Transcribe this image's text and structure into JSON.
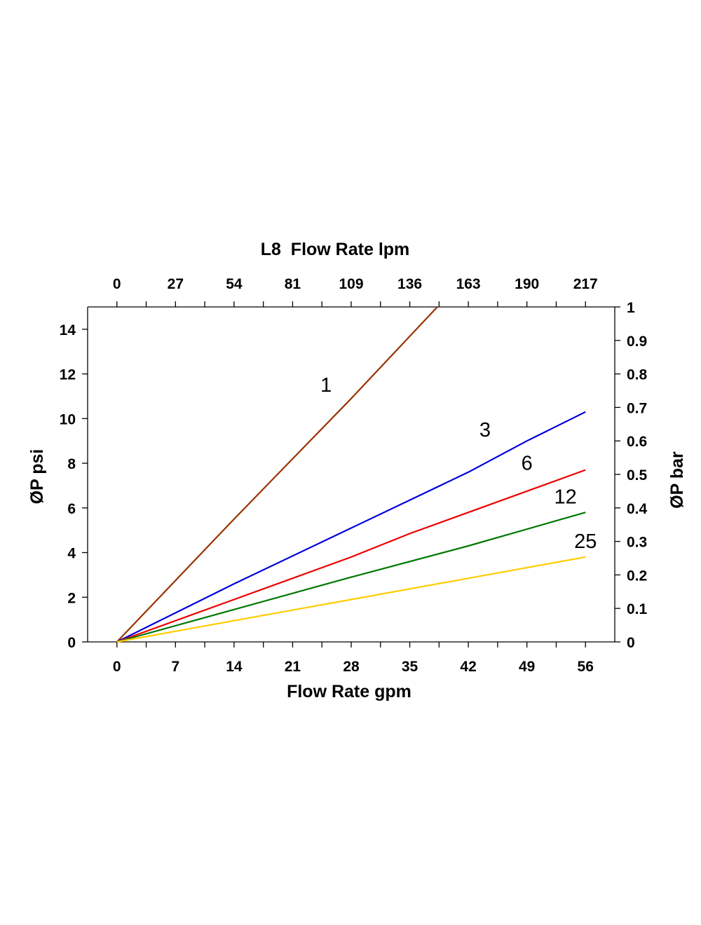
{
  "chart_data": {
    "type": "line",
    "title": "L8  Flow Rate lpm",
    "xlabel": "Flow Rate gpm",
    "ylabel_left": "ØP psi",
    "ylabel_right": "ØP bar",
    "xlim": [
      -3.5,
      59.5
    ],
    "ylim": [
      0,
      15
    ],
    "ylim_right": [
      0,
      1
    ],
    "bottom_ticks": [
      "0",
      "7",
      "14",
      "21",
      "28",
      "35",
      "42",
      "49",
      "56"
    ],
    "bottom_tick_values": [
      0,
      7,
      14,
      21,
      28,
      35,
      42,
      49,
      56
    ],
    "top_ticks": [
      "0",
      "27",
      "54",
      "81",
      "109",
      "136",
      "163",
      "190",
      "217"
    ],
    "left_ticks": [
      "0",
      "2",
      "4",
      "6",
      "8",
      "10",
      "12",
      "14"
    ],
    "left_tick_values": [
      0,
      2,
      4,
      6,
      8,
      10,
      12,
      14
    ],
    "right_ticks": [
      "0",
      "0.1",
      "0.2",
      "0.3",
      "0.4",
      "0.5",
      "0.6",
      "0.7",
      "0.8",
      "0.9",
      "1"
    ],
    "right_tick_values": [
      0,
      0.1,
      0.2,
      0.3,
      0.4,
      0.5,
      0.6,
      0.7,
      0.8,
      0.9,
      1
    ],
    "series": [
      {
        "name": "1",
        "color": "#993300",
        "x": [
          0,
          14,
          28,
          38.3
        ],
        "y": [
          0,
          5.5,
          10.9,
          15
        ],
        "label_at": [
          25,
          11.2
        ]
      },
      {
        "name": "3",
        "color": "#0000dd",
        "x": [
          0,
          14,
          28,
          42,
          49,
          56
        ],
        "y": [
          0,
          2.6,
          5.1,
          7.6,
          9.0,
          10.3
        ],
        "label_at": [
          44,
          9.2
        ]
      },
      {
        "name": "6",
        "color": "#ee0000",
        "x": [
          0,
          14,
          28,
          35,
          42,
          56
        ],
        "y": [
          0,
          1.9,
          3.8,
          4.85,
          5.8,
          7.7
        ],
        "label_at": [
          49,
          7.7
        ]
      },
      {
        "name": "12",
        "color": "#007700",
        "x": [
          0,
          14,
          28,
          42,
          56
        ],
        "y": [
          0,
          1.45,
          2.9,
          4.3,
          5.8
        ],
        "label_at": [
          53.6,
          6.2
        ]
      },
      {
        "name": "25",
        "color": "#ffcc00",
        "x": [
          0,
          14,
          28,
          42,
          56
        ],
        "y": [
          0,
          0.95,
          1.9,
          2.85,
          3.8
        ],
        "label_at": [
          56,
          4.2
        ]
      }
    ]
  }
}
